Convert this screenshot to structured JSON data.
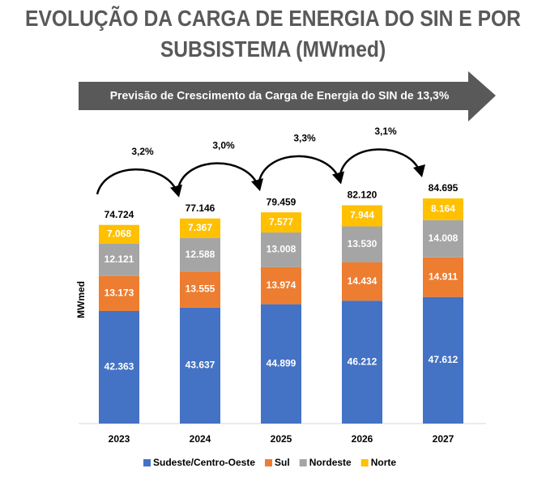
{
  "chart_data": {
    "type": "bar",
    "stacked": true,
    "title": "EVOLUÇÃO DA CARGA DE ENERGIA DO SIN E POR SUBSISTEMA (MWmed)",
    "subtitle": "Previsão de Crescimento da Carga de Energia do SIN de 13,3%",
    "y_label": "MWmed",
    "categories": [
      "2023",
      "2024",
      "2025",
      "2026",
      "2027"
    ],
    "series": [
      {
        "name": "Sudeste/Centro-Oeste",
        "color": "#4472c4",
        "values": [
          42363,
          43637,
          44899,
          46212,
          47612
        ],
        "value_labels": [
          "42.363",
          "43.637",
          "44.899",
          "46.212",
          "47.612"
        ]
      },
      {
        "name": "Sul",
        "color": "#ed7d31",
        "values": [
          13173,
          13555,
          13974,
          14434,
          14911
        ],
        "value_labels": [
          "13.173",
          "13.555",
          "13.974",
          "14.434",
          "14.911"
        ]
      },
      {
        "name": "Nordeste",
        "color": "#a5a5a5",
        "values": [
          12121,
          12588,
          13008,
          13530,
          14008
        ],
        "value_labels": [
          "12.121",
          "12.588",
          "13.008",
          "13.530",
          "14.008"
        ]
      },
      {
        "name": "Norte",
        "color": "#ffc000",
        "values": [
          7068,
          7367,
          7577,
          7944,
          8164
        ],
        "value_labels": [
          "7.068",
          "7.367",
          "7.577",
          "7.944",
          "8.164"
        ]
      }
    ],
    "totals": {
      "values": [
        74724,
        77146,
        79459,
        82120,
        84695
      ],
      "value_labels": [
        "74.724",
        "77.146",
        "79.459",
        "82.120",
        "84.695"
      ]
    },
    "growth": {
      "values": [
        3.2,
        3.0,
        3.3,
        3.1
      ],
      "value_labels": [
        "3,2%",
        "3,0%",
        "3,3%",
        "3,1%"
      ]
    }
  }
}
